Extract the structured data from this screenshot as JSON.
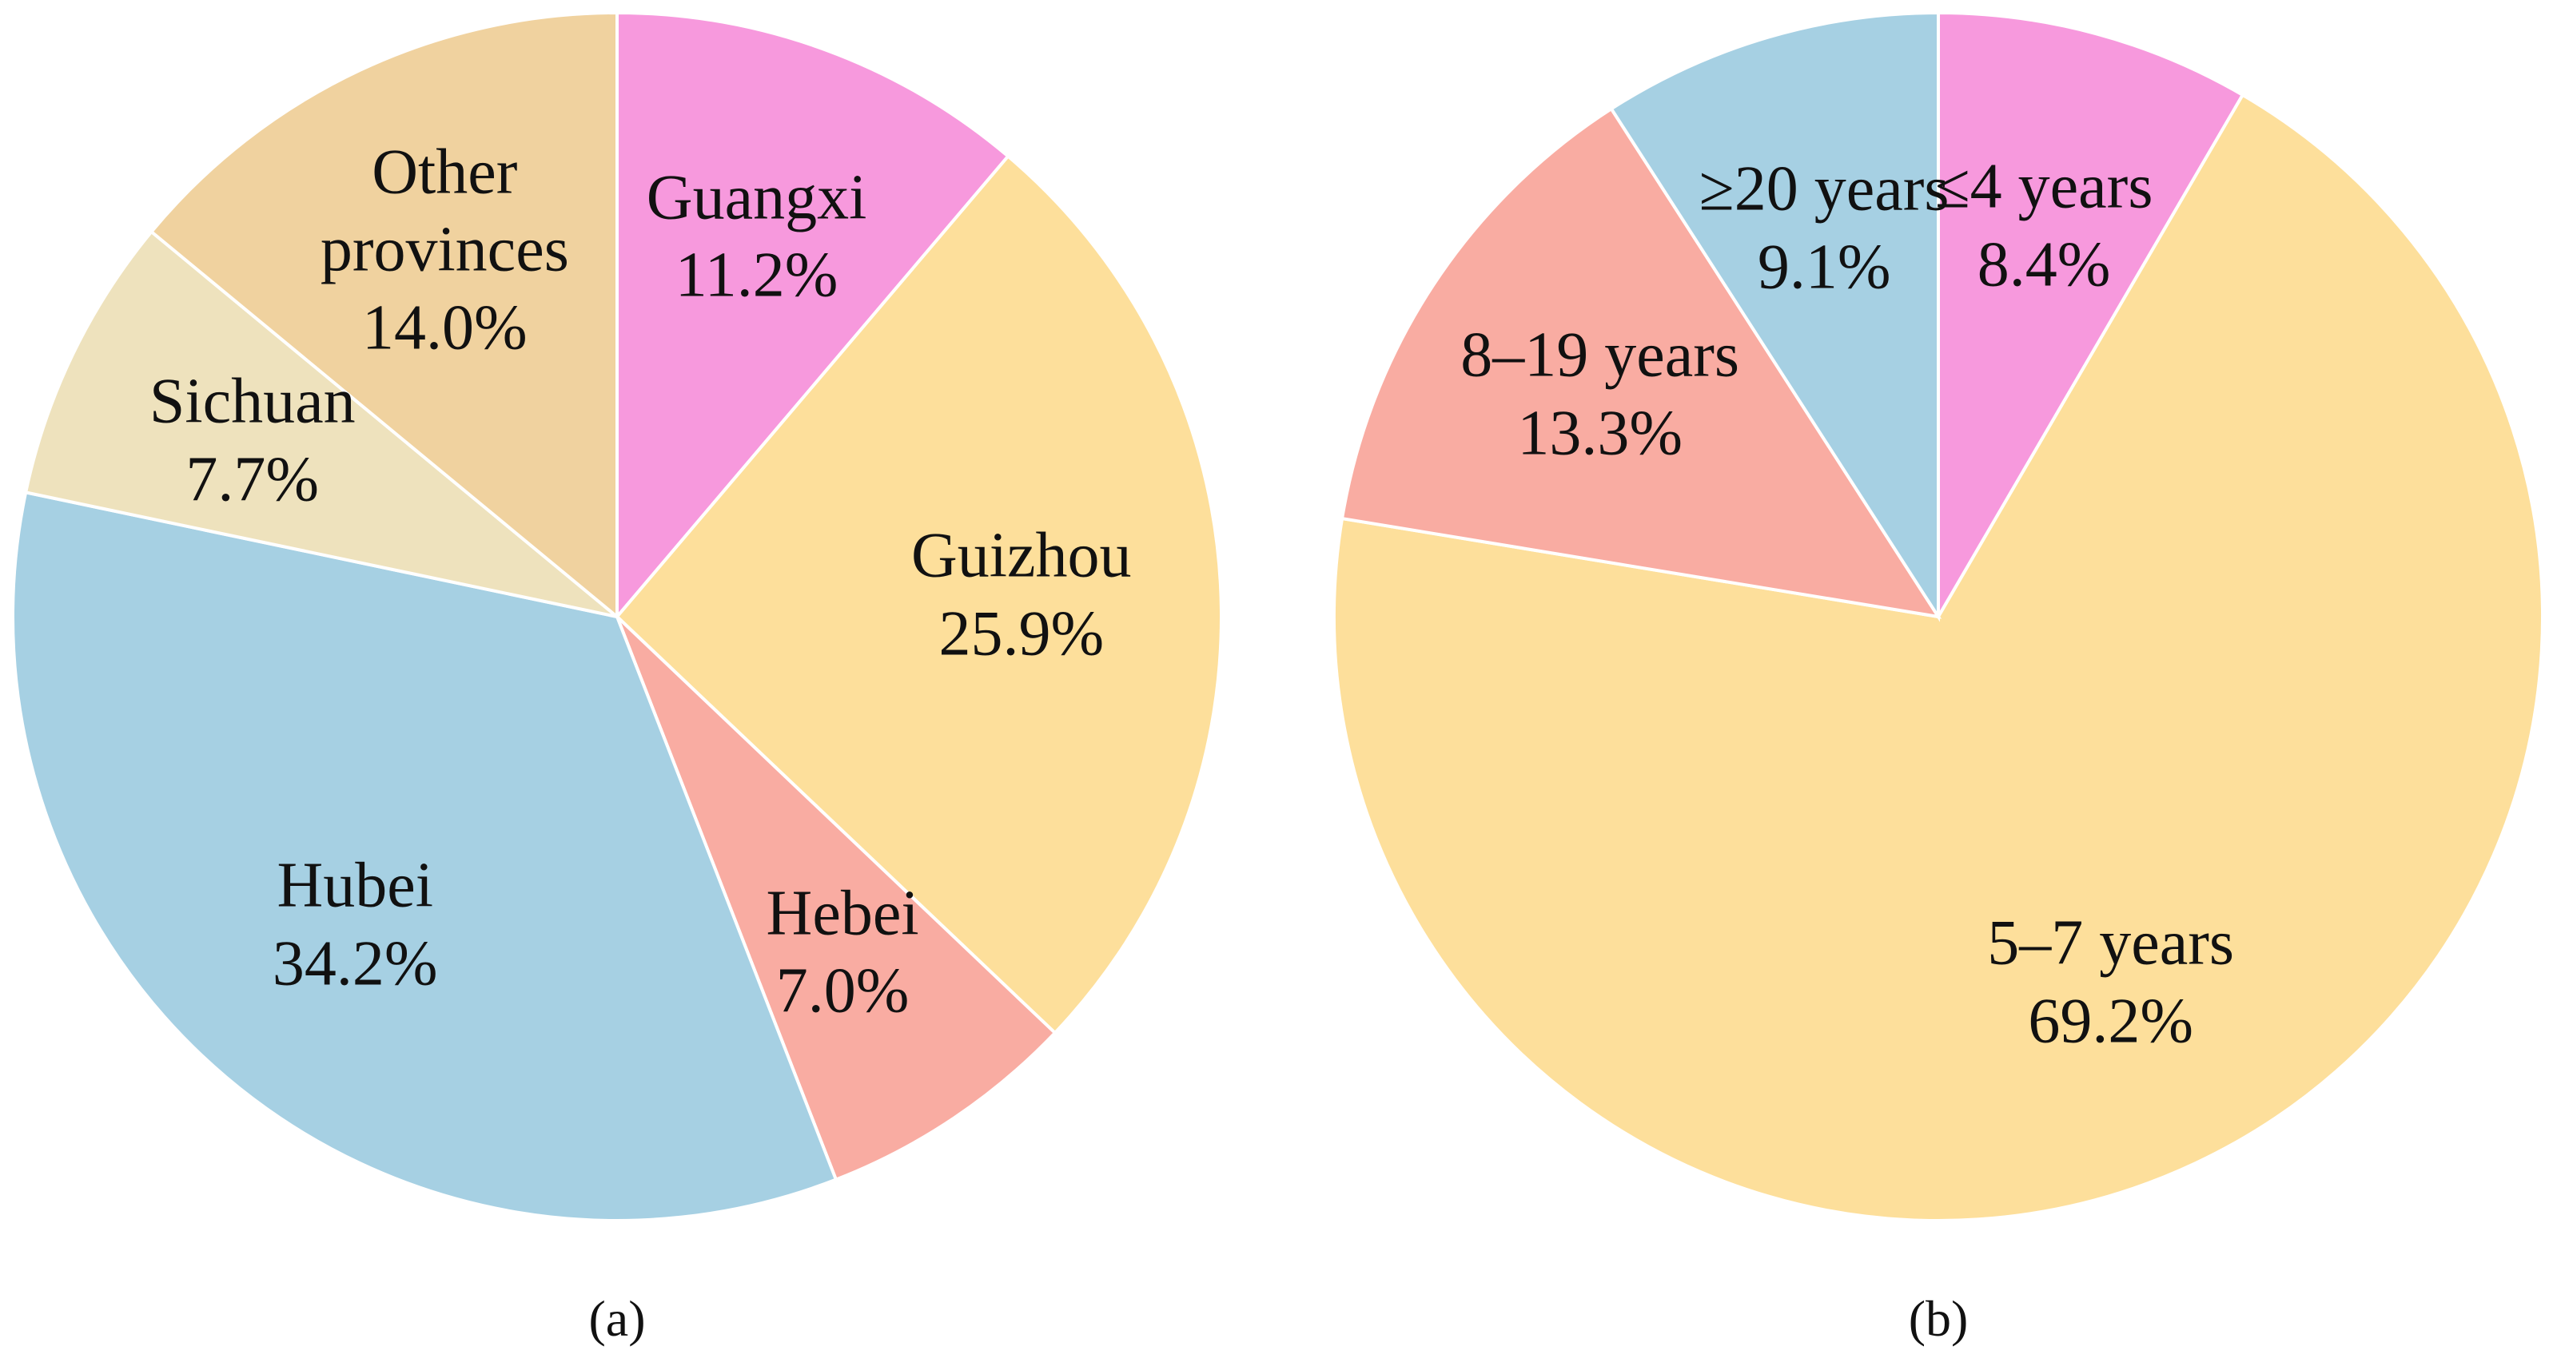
{
  "chart_data": [
    {
      "type": "pie",
      "caption": "(a)",
      "categories": [
        "Guangxi",
        "Guizhou",
        "Hebei",
        "Hubei",
        "Sichuan",
        "Other provinces"
      ],
      "values": [
        11.2,
        25.9,
        7.0,
        34.2,
        7.7,
        14.0
      ],
      "value_labels": [
        "11.2%",
        "25.9%",
        "7.0%",
        "34.2%",
        "7.7%",
        "14.0%"
      ],
      "colors": [
        "#f799dd",
        "#fddf9b",
        "#f9aca2",
        "#a6d0e3",
        "#eee2bd",
        "#f0d29f"
      ]
    },
    {
      "type": "pie",
      "caption": "(b)",
      "categories": [
        "≤4 years",
        "5–7 years",
        "8–19 years",
        "≥20 years"
      ],
      "values": [
        8.4,
        69.2,
        13.3,
        9.1
      ],
      "value_labels": [
        "8.4%",
        "69.2%",
        "13.3%",
        "9.1%"
      ],
      "colors": [
        "#f799dd",
        "#fddf9b",
        "#f9aca2",
        "#a6d0e3"
      ]
    }
  ]
}
